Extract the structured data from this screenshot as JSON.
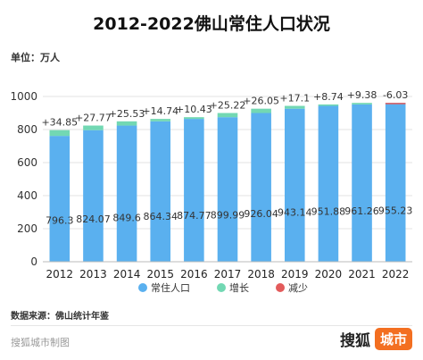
{
  "title": "2012-2022佛山常住人口状况",
  "unit_label": "单位：万人",
  "source": "数据来源：佛山统计年鉴",
  "watermark": "搜狐城市制图",
  "brand": {
    "name": "搜狐",
    "tag": "城市",
    "tag_color": "#f36f21"
  },
  "colors": {
    "resident": "#5ab0ef",
    "increase": "#72d8b3",
    "decrease": "#e35b5b"
  },
  "chart_data": {
    "type": "bar",
    "stacked": true,
    "categories": [
      "2012",
      "2013",
      "2014",
      "2015",
      "2016",
      "2017",
      "2018",
      "2019",
      "2020",
      "2021",
      "2022"
    ],
    "series": [
      {
        "name": "常住人口",
        "values": [
          761.45,
          796.3,
          824.07,
          849.6,
          864.34,
          874.77,
          899.99,
          926.04,
          943.14,
          951.88,
          961.26
        ],
        "labels": [
          "796.3",
          "824.07",
          "849.6",
          "864.34",
          "874.77",
          "899.99",
          "926.04",
          "943.14",
          "951.88",
          "961.26",
          "955.23"
        ]
      },
      {
        "name": "增长",
        "values": [
          34.85,
          27.77,
          25.53,
          14.74,
          10.43,
          25.22,
          26.05,
          17.1,
          8.74,
          9.38,
          0
        ],
        "labels": [
          "+34.85",
          "+27.77",
          "+25.53",
          "+14.74",
          "+10.43",
          "+25.22",
          "+26.05",
          "+17.1",
          "+8.74",
          "+9.38",
          ""
        ]
      },
      {
        "name": "减少",
        "values": [
          0,
          0,
          0,
          0,
          0,
          0,
          0,
          0,
          0,
          0,
          6.03
        ],
        "labels": [
          "",
          "",
          "",
          "",
          "",
          "",
          "",
          "",
          "",
          "",
          "-6.03"
        ]
      }
    ],
    "yticks": [
      0,
      200,
      400,
      600,
      800,
      1000
    ],
    "ylim": [
      0,
      1000
    ],
    "grid": true,
    "legend_position": "bottom-center"
  }
}
